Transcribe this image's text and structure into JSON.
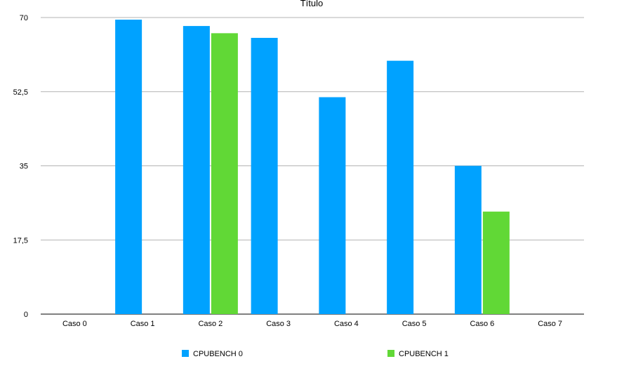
{
  "chart_data": {
    "type": "bar",
    "title": "Título",
    "categories": [
      "Caso 0",
      "Caso 1",
      "Caso 2",
      "Caso 3",
      "Caso 4",
      "Caso 5",
      "Caso 6",
      "Caso 7"
    ],
    "series": [
      {
        "name": "CPUBENCH 0",
        "color": "#00a2ff",
        "values": [
          0,
          69.5,
          68.0,
          65.2,
          51.2,
          59.8,
          35.0,
          0
        ]
      },
      {
        "name": "CPUBENCH 1",
        "color": "#61d836",
        "values": [
          0,
          0,
          66.3,
          0,
          0,
          0,
          24.2,
          0
        ]
      }
    ],
    "yticks": [
      "0",
      "17,5",
      "35",
      "52,5",
      "70"
    ],
    "ylim": [
      0,
      70
    ],
    "grid": true,
    "legend": "bottom"
  }
}
